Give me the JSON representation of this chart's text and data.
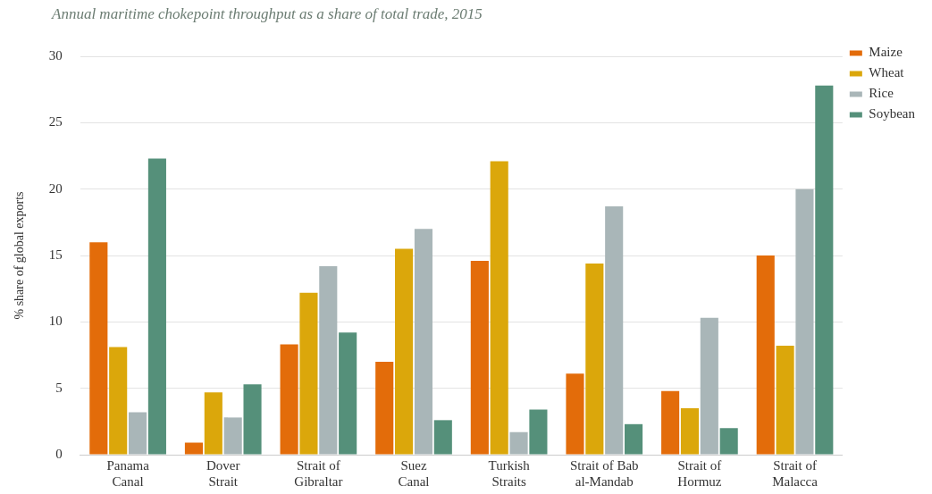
{
  "chart_data": {
    "type": "bar",
    "title": "Annual maritime chokepoint throughput as a share of total trade, 2015",
    "ylabel": "% share of global exports",
    "categories": [
      "Panama\nCanal",
      "Dover\nStrait",
      "Strait of\nGibraltar",
      "Suez\nCanal",
      "Turkish\nStraits",
      "Strait of Bab\nal-Mandab",
      "Strait of\nHormuz",
      "Strait of\nMalacca"
    ],
    "series": [
      {
        "name": "Maize",
        "color": "#e36c0a",
        "values": [
          16,
          0.9,
          8.3,
          7.0,
          14.6,
          6.1,
          4.8,
          15.0
        ]
      },
      {
        "name": "Wheat",
        "color": "#dba70b",
        "values": [
          8.1,
          4.7,
          12.2,
          15.5,
          22.1,
          14.4,
          3.5,
          8.2
        ]
      },
      {
        "name": "Rice",
        "color": "#a9b6b8",
        "values": [
          3.2,
          2.8,
          14.2,
          17.0,
          1.7,
          18.7,
          10.3,
          20.0
        ]
      },
      {
        "name": "Soybean",
        "color": "#55907a",
        "values": [
          22.3,
          5.3,
          9.2,
          2.6,
          3.4,
          2.3,
          2.0,
          27.8
        ]
      }
    ],
    "ylim": [
      0,
      30
    ],
    "yticks": [
      0,
      5,
      10,
      15,
      20,
      25,
      30
    ],
    "grid": "y",
    "legend": "right"
  }
}
